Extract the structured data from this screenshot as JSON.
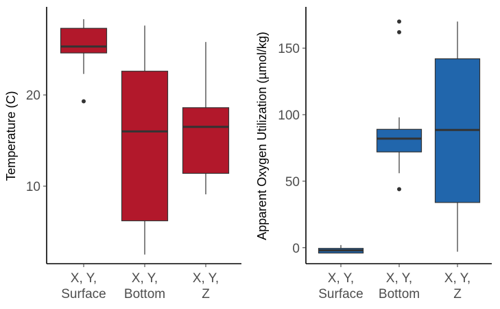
{
  "chart_data": [
    {
      "type": "boxplot",
      "title": "",
      "xlabel": "",
      "ylabel": "Temperature (C)",
      "fill_color": "#B2182B",
      "ylim": [
        1.5,
        29.5
      ],
      "yticks": [
        10,
        20
      ],
      "categories": [
        [
          "X, Y,",
          "Surface"
        ],
        [
          "X, Y,",
          "Bottom"
        ],
        [
          "X, Y,",
          "Z"
        ]
      ],
      "boxes": [
        {
          "low": 22.3,
          "q1": 24.6,
          "median": 25.3,
          "q3": 27.3,
          "high": 28.3,
          "outliers": [
            19.3
          ]
        },
        {
          "low": 2.5,
          "q1": 6.2,
          "median": 16.0,
          "q3": 22.6,
          "high": 27.6,
          "outliers": []
        },
        {
          "low": 9.1,
          "q1": 11.4,
          "median": 16.5,
          "q3": 18.6,
          "high": 25.8,
          "outliers": []
        }
      ]
    },
    {
      "type": "boxplot",
      "title": "",
      "xlabel": "",
      "ylabel": "Apparent Oxygen Utilization (µmol/kg)",
      "fill_color": "#2166AC",
      "ylim": [
        -12,
        180
      ],
      "yticks": [
        0,
        50,
        100,
        150
      ],
      "categories": [
        [
          "X, Y,",
          "Surface"
        ],
        [
          "X, Y,",
          "Bottom"
        ],
        [
          "X, Y,",
          "Z"
        ]
      ],
      "boxes": [
        {
          "low": -4,
          "q1": -4,
          "median": -2,
          "q3": -0.5,
          "high": 2,
          "outliers": []
        },
        {
          "low": 56,
          "q1": 72,
          "median": 82,
          "q3": 89,
          "high": 98,
          "outliers": [
            44,
            162,
            170
          ]
        },
        {
          "low": -3,
          "q1": 34,
          "median": 88.5,
          "q3": 142,
          "high": 170,
          "outliers": []
        }
      ]
    }
  ]
}
